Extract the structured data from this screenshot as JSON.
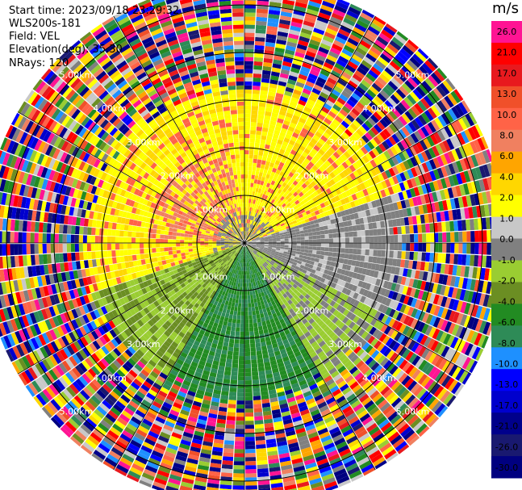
{
  "header": {
    "start_time": "Start time: 2023/09/18 23:29:32",
    "instrument": "WLS200s-181",
    "field": "Field: VEL",
    "elevation": "Elevation(deg): 35.30",
    "nrays": "NRays: 120"
  },
  "chart_data": {
    "type": "heatmap",
    "subtype": "polar PPI (plan position indicator) scan",
    "field": "VEL",
    "units": "m/s",
    "nrays": 120,
    "elevation_deg": 35.3,
    "range_rings_km": [
      1,
      2,
      3,
      4,
      5
    ],
    "range_ring_labels": [
      "1.00km",
      "2.00km",
      "3.00km",
      "4.00km",
      "5.00km"
    ],
    "max_range_km": 5.5,
    "colorbar": {
      "ticks": [
        "26.0",
        "21.0",
        "17.0",
        "13.0",
        "10.0",
        "8.0",
        "6.0",
        "4.0",
        "2.0",
        "1.0",
        "0.0",
        "-1.0",
        "-2.0",
        "-4.0",
        "-6.0",
        "-8.0",
        "-10.0",
        "-13.0",
        "-17.0",
        "-21.0",
        "-26.0",
        "-30.0"
      ],
      "colors": [
        "#ff1493",
        "#ff0000",
        "#e8191e",
        "#f0502a",
        "#ff6347",
        "#f08060",
        "#ffa500",
        "#ffd700",
        "#ffff00",
        "#c8c8c8",
        "#808080",
        "#9acd32",
        "#6b8e23",
        "#228b22",
        "#2e8b57",
        "#1e90ff",
        "#0000ff",
        "#0000cd",
        "#00008b",
        "#191970",
        "#000080"
      ]
    },
    "pattern_description_values": {
      "northwest_sector_inner": "positive (1 to 6 m/s)",
      "south_sector_inner": "negative (-1 to -8 m/s)",
      "east_west_axis_inner": "near zero (0 m/s)",
      "beyond_3km": "noise (full velocity range)"
    }
  }
}
